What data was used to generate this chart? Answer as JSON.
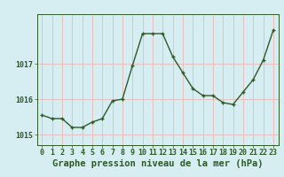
{
  "hours": [
    0,
    1,
    2,
    3,
    4,
    5,
    6,
    7,
    8,
    9,
    10,
    11,
    12,
    13,
    14,
    15,
    16,
    17,
    18,
    19,
    20,
    21,
    22,
    23
  ],
  "pressure": [
    1015.55,
    1015.45,
    1015.45,
    1015.2,
    1015.2,
    1015.35,
    1015.45,
    1015.95,
    1016.0,
    1016.95,
    1017.85,
    1017.85,
    1017.85,
    1017.2,
    1016.75,
    1016.3,
    1016.1,
    1016.1,
    1015.9,
    1015.85,
    1016.2,
    1016.55,
    1017.1,
    1017.95
  ],
  "line_color": "#2d5a27",
  "marker": "+",
  "bg_color": "#d6eef2",
  "title": "Graphe pression niveau de la mer (hPa)",
  "ylabel_ticks": [
    1015,
    1016,
    1017
  ],
  "ylim": [
    1014.7,
    1018.4
  ],
  "xlim": [
    -0.5,
    23.5
  ],
  "title_color": "#2d5a27",
  "title_fontsize": 7.5,
  "tick_fontsize": 6,
  "axis_color": "#2d5a27",
  "vgrid_color": "#e8b8b8",
  "hgrid_color": "#e8b8b8"
}
